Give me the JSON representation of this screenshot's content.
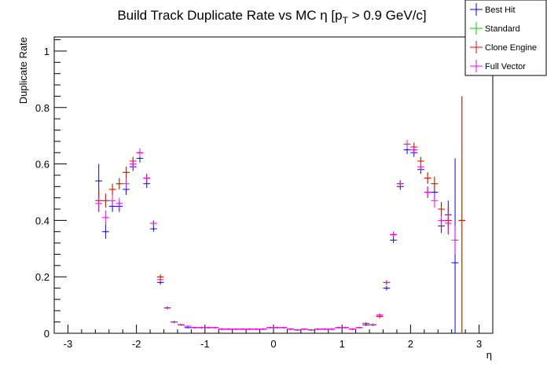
{
  "chart_data": {
    "type": "scatter",
    "title": "Build Track Duplicate Rate vs MC η [p_T > 0.9 GeV/c]",
    "title_parts": {
      "main": "Build Track Duplicate Rate vs MC η [p",
      "sub": "T",
      "tail": " > 0.9 GeV/c]"
    },
    "xlabel": "η",
    "ylabel": "Duplicate Rate",
    "xlim": [
      -3.2,
      3.2
    ],
    "ylim": [
      0,
      1.05
    ],
    "xticks": [
      -3,
      -2,
      -1,
      0,
      1,
      2,
      3
    ],
    "xtick_labels": [
      "-3",
      "-2",
      "-1",
      "0",
      "1",
      "2",
      "3"
    ],
    "yticks": [
      0,
      0.2,
      0.4,
      0.6,
      0.8,
      1
    ],
    "ytick_labels": [
      "0",
      "0.2",
      "0.4",
      "0.6",
      "0.8",
      "1"
    ],
    "grid": false,
    "legend_position": "top-right",
    "bin_half_width": 0.05,
    "series": [
      {
        "name": "Best Hit",
        "color": "#0000ff",
        "points": [
          [
            -2.55,
            0.54,
            0.06
          ],
          [
            -2.45,
            0.36,
            0.025
          ],
          [
            -2.35,
            0.45,
            0.02
          ],
          [
            -2.25,
            0.45,
            0.02
          ],
          [
            -2.15,
            0.51,
            0.02
          ],
          [
            -2.05,
            0.59,
            0.015
          ],
          [
            -1.95,
            0.62,
            0.015
          ],
          [
            -1.85,
            0.53,
            0.015
          ],
          [
            -1.75,
            0.37,
            0.01
          ],
          [
            -1.65,
            0.18,
            0.008
          ],
          [
            -1.55,
            0.09,
            0.005
          ],
          [
            -1.45,
            0.04,
            0.004
          ],
          [
            -1.35,
            0.03,
            0.003
          ],
          [
            -1.25,
            0.02,
            0.003
          ],
          [
            -1.15,
            0.02,
            0.003
          ],
          [
            -1.05,
            0.02,
            0.003
          ],
          [
            -0.95,
            0.02,
            0.003
          ],
          [
            -0.85,
            0.02,
            0.003
          ],
          [
            -0.75,
            0.015,
            0.003
          ],
          [
            -0.65,
            0.015,
            0.003
          ],
          [
            -0.55,
            0.015,
            0.003
          ],
          [
            -0.45,
            0.015,
            0.003
          ],
          [
            -0.35,
            0.015,
            0.003
          ],
          [
            -0.25,
            0.015,
            0.003
          ],
          [
            -0.15,
            0.015,
            0.003
          ],
          [
            -0.05,
            0.02,
            0.003
          ],
          [
            0.05,
            0.02,
            0.003
          ],
          [
            0.15,
            0.02,
            0.003
          ],
          [
            0.25,
            0.015,
            0.003
          ],
          [
            0.35,
            0.012,
            0.003
          ],
          [
            0.45,
            0.015,
            0.003
          ],
          [
            0.55,
            0.012,
            0.003
          ],
          [
            0.65,
            0.015,
            0.003
          ],
          [
            0.75,
            0.015,
            0.003
          ],
          [
            0.85,
            0.015,
            0.003
          ],
          [
            0.95,
            0.02,
            0.003
          ],
          [
            1.05,
            0.02,
            0.003
          ],
          [
            1.15,
            0.015,
            0.003
          ],
          [
            1.25,
            0.02,
            0.003
          ],
          [
            1.35,
            0.03,
            0.004
          ],
          [
            1.45,
            0.03,
            0.004
          ],
          [
            1.55,
            0.06,
            0.006
          ],
          [
            1.65,
            0.16,
            0.008
          ],
          [
            1.75,
            0.33,
            0.01
          ],
          [
            1.85,
            0.52,
            0.012
          ],
          [
            1.95,
            0.65,
            0.015
          ],
          [
            2.05,
            0.64,
            0.015
          ],
          [
            2.15,
            0.58,
            0.015
          ],
          [
            2.25,
            0.5,
            0.02
          ],
          [
            2.35,
            0.5,
            0.025
          ],
          [
            2.45,
            0.38,
            0.025
          ],
          [
            2.55,
            0.42,
            0.05
          ],
          [
            2.65,
            0.25,
            0.37
          ]
        ]
      },
      {
        "name": "Standard",
        "color": "#00cc00",
        "points": [
          [
            -2.55,
            0.47,
            0.04
          ],
          [
            -2.45,
            0.47,
            0.025
          ],
          [
            -2.35,
            0.51,
            0.02
          ],
          [
            -2.25,
            0.53,
            0.02
          ],
          [
            -2.15,
            0.57,
            0.02
          ],
          [
            -2.05,
            0.61,
            0.015
          ],
          [
            -1.95,
            0.64,
            0.015
          ],
          [
            -1.85,
            0.55,
            0.015
          ],
          [
            -1.75,
            0.39,
            0.01
          ],
          [
            -1.65,
            0.2,
            0.008
          ],
          [
            -1.55,
            0.09,
            0.005
          ],
          [
            -1.45,
            0.04,
            0.004
          ],
          [
            -1.35,
            0.03,
            0.003
          ],
          [
            -1.25,
            0.025,
            0.003
          ],
          [
            -1.15,
            0.02,
            0.003
          ],
          [
            -1.05,
            0.02,
            0.003
          ],
          [
            -0.95,
            0.02,
            0.003
          ],
          [
            -0.85,
            0.02,
            0.003
          ],
          [
            -0.75,
            0.015,
            0.003
          ],
          [
            -0.65,
            0.015,
            0.003
          ],
          [
            -0.55,
            0.015,
            0.003
          ],
          [
            -0.45,
            0.015,
            0.003
          ],
          [
            -0.35,
            0.015,
            0.003
          ],
          [
            -0.25,
            0.015,
            0.003
          ],
          [
            -0.15,
            0.015,
            0.003
          ],
          [
            -0.05,
            0.02,
            0.003
          ],
          [
            0.05,
            0.02,
            0.003
          ],
          [
            0.15,
            0.02,
            0.003
          ],
          [
            0.25,
            0.015,
            0.003
          ],
          [
            0.35,
            0.012,
            0.003
          ],
          [
            0.45,
            0.015,
            0.003
          ],
          [
            0.55,
            0.012,
            0.003
          ],
          [
            0.65,
            0.015,
            0.003
          ],
          [
            0.75,
            0.015,
            0.003
          ],
          [
            0.85,
            0.015,
            0.003
          ],
          [
            0.95,
            0.02,
            0.003
          ],
          [
            1.05,
            0.02,
            0.003
          ],
          [
            1.15,
            0.015,
            0.003
          ],
          [
            1.25,
            0.02,
            0.003
          ],
          [
            1.35,
            0.035,
            0.004
          ],
          [
            1.45,
            0.03,
            0.004
          ],
          [
            1.55,
            0.06,
            0.006
          ],
          [
            1.65,
            0.18,
            0.008
          ],
          [
            1.75,
            0.35,
            0.01
          ],
          [
            1.85,
            0.53,
            0.012
          ],
          [
            1.95,
            0.67,
            0.015
          ],
          [
            2.05,
            0.66,
            0.015
          ],
          [
            2.15,
            0.61,
            0.015
          ],
          [
            2.25,
            0.55,
            0.02
          ],
          [
            2.35,
            0.53,
            0.025
          ],
          [
            2.45,
            0.44,
            0.025
          ],
          [
            2.55,
            0.4,
            0.05
          ],
          [
            2.75,
            0.4,
            0.44
          ]
        ]
      },
      {
        "name": "Clone Engine",
        "color": "#ff0000",
        "points": [
          [
            -2.55,
            0.47,
            0.04
          ],
          [
            -2.45,
            0.47,
            0.025
          ],
          [
            -2.35,
            0.51,
            0.02
          ],
          [
            -2.25,
            0.53,
            0.02
          ],
          [
            -2.15,
            0.57,
            0.02
          ],
          [
            -2.05,
            0.61,
            0.015
          ],
          [
            -1.95,
            0.64,
            0.015
          ],
          [
            -1.85,
            0.55,
            0.015
          ],
          [
            -1.75,
            0.39,
            0.01
          ],
          [
            -1.65,
            0.2,
            0.008
          ],
          [
            -1.55,
            0.09,
            0.005
          ],
          [
            -1.45,
            0.04,
            0.004
          ],
          [
            -1.35,
            0.03,
            0.003
          ],
          [
            -1.25,
            0.025,
            0.003
          ],
          [
            -1.15,
            0.02,
            0.003
          ],
          [
            -1.05,
            0.02,
            0.003
          ],
          [
            -0.95,
            0.02,
            0.003
          ],
          [
            -0.85,
            0.02,
            0.003
          ],
          [
            -0.75,
            0.015,
            0.003
          ],
          [
            -0.65,
            0.015,
            0.003
          ],
          [
            -0.55,
            0.015,
            0.003
          ],
          [
            -0.45,
            0.015,
            0.003
          ],
          [
            -0.35,
            0.015,
            0.003
          ],
          [
            -0.25,
            0.015,
            0.003
          ],
          [
            -0.15,
            0.015,
            0.003
          ],
          [
            -0.05,
            0.02,
            0.003
          ],
          [
            0.05,
            0.02,
            0.003
          ],
          [
            0.15,
            0.02,
            0.003
          ],
          [
            0.25,
            0.015,
            0.003
          ],
          [
            0.35,
            0.012,
            0.003
          ],
          [
            0.45,
            0.015,
            0.003
          ],
          [
            0.55,
            0.012,
            0.003
          ],
          [
            0.65,
            0.015,
            0.003
          ],
          [
            0.75,
            0.015,
            0.003
          ],
          [
            0.85,
            0.015,
            0.003
          ],
          [
            0.95,
            0.02,
            0.003
          ],
          [
            1.05,
            0.02,
            0.003
          ],
          [
            1.15,
            0.015,
            0.003
          ],
          [
            1.25,
            0.02,
            0.003
          ],
          [
            1.35,
            0.035,
            0.004
          ],
          [
            1.45,
            0.03,
            0.004
          ],
          [
            1.55,
            0.06,
            0.006
          ],
          [
            1.65,
            0.18,
            0.008
          ],
          [
            1.75,
            0.35,
            0.01
          ],
          [
            1.85,
            0.53,
            0.012
          ],
          [
            1.95,
            0.67,
            0.015
          ],
          [
            2.05,
            0.66,
            0.015
          ],
          [
            2.15,
            0.61,
            0.015
          ],
          [
            2.25,
            0.55,
            0.02
          ],
          [
            2.35,
            0.53,
            0.025
          ],
          [
            2.45,
            0.44,
            0.025
          ],
          [
            2.55,
            0.4,
            0.05
          ],
          [
            2.75,
            0.4,
            0.44
          ]
        ]
      },
      {
        "name": "Full Vector",
        "color": "#ff00ff",
        "points": [
          [
            -2.55,
            0.46,
            0.03
          ],
          [
            -2.45,
            0.41,
            0.025
          ],
          [
            -2.35,
            0.47,
            0.02
          ],
          [
            -2.25,
            0.46,
            0.02
          ],
          [
            -2.15,
            0.53,
            0.02
          ],
          [
            -2.05,
            0.6,
            0.015
          ],
          [
            -1.95,
            0.64,
            0.015
          ],
          [
            -1.85,
            0.55,
            0.015
          ],
          [
            -1.75,
            0.39,
            0.01
          ],
          [
            -1.65,
            0.19,
            0.008
          ],
          [
            -1.55,
            0.09,
            0.005
          ],
          [
            -1.45,
            0.04,
            0.004
          ],
          [
            -1.35,
            0.03,
            0.003
          ],
          [
            -1.25,
            0.025,
            0.003
          ],
          [
            -1.15,
            0.02,
            0.003
          ],
          [
            -1.05,
            0.02,
            0.003
          ],
          [
            -0.95,
            0.02,
            0.003
          ],
          [
            -0.85,
            0.02,
            0.003
          ],
          [
            -0.75,
            0.015,
            0.003
          ],
          [
            -0.65,
            0.015,
            0.003
          ],
          [
            -0.55,
            0.015,
            0.003
          ],
          [
            -0.45,
            0.015,
            0.003
          ],
          [
            -0.35,
            0.015,
            0.003
          ],
          [
            -0.25,
            0.015,
            0.003
          ],
          [
            -0.15,
            0.015,
            0.003
          ],
          [
            -0.05,
            0.02,
            0.003
          ],
          [
            0.05,
            0.02,
            0.003
          ],
          [
            0.15,
            0.02,
            0.003
          ],
          [
            0.25,
            0.015,
            0.003
          ],
          [
            0.35,
            0.012,
            0.003
          ],
          [
            0.45,
            0.015,
            0.003
          ],
          [
            0.55,
            0.012,
            0.003
          ],
          [
            0.65,
            0.015,
            0.003
          ],
          [
            0.75,
            0.015,
            0.003
          ],
          [
            0.85,
            0.015,
            0.003
          ],
          [
            0.95,
            0.02,
            0.003
          ],
          [
            1.05,
            0.02,
            0.003
          ],
          [
            1.15,
            0.015,
            0.003
          ],
          [
            1.25,
            0.02,
            0.003
          ],
          [
            1.35,
            0.035,
            0.004
          ],
          [
            1.45,
            0.03,
            0.004
          ],
          [
            1.55,
            0.065,
            0.006
          ],
          [
            1.65,
            0.18,
            0.008
          ],
          [
            1.75,
            0.35,
            0.01
          ],
          [
            1.85,
            0.53,
            0.012
          ],
          [
            1.95,
            0.67,
            0.015
          ],
          [
            2.05,
            0.65,
            0.015
          ],
          [
            2.15,
            0.59,
            0.015
          ],
          [
            2.25,
            0.5,
            0.02
          ],
          [
            2.35,
            0.47,
            0.025
          ],
          [
            2.45,
            0.4,
            0.025
          ],
          [
            2.55,
            0.39,
            0.04
          ],
          [
            2.65,
            0.33,
            0.05
          ]
        ]
      }
    ]
  }
}
